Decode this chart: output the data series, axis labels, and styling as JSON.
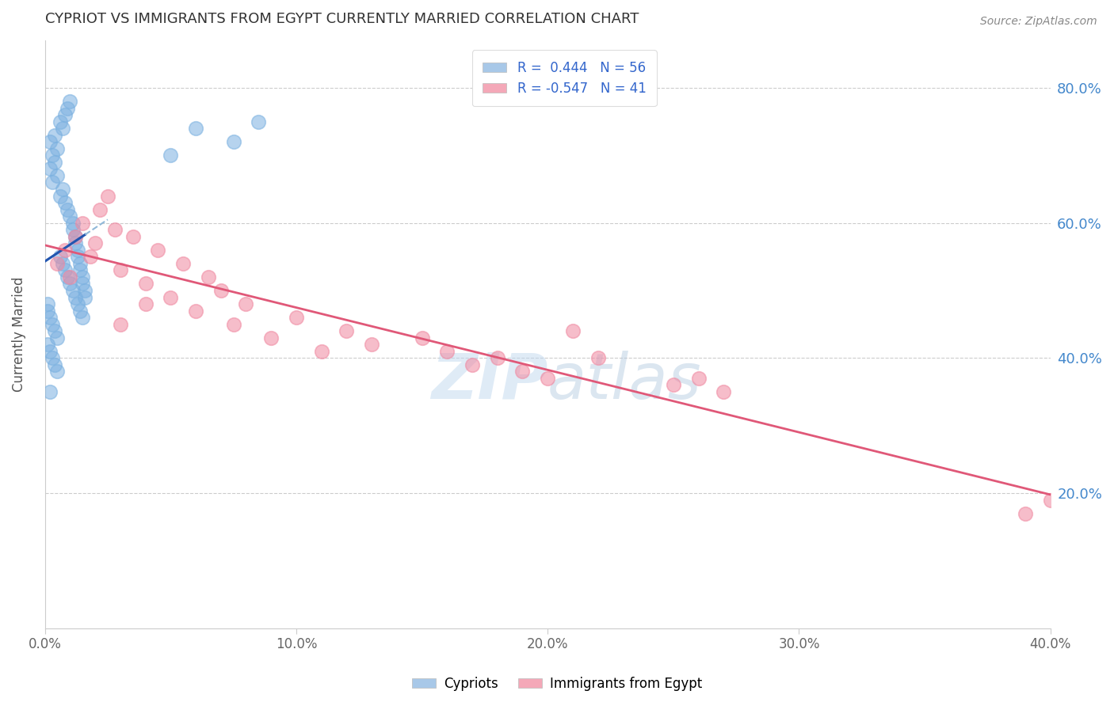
{
  "title": "CYPRIOT VS IMMIGRANTS FROM EGYPT CURRENTLY MARRIED CORRELATION CHART",
  "source": "Source: ZipAtlas.com",
  "ylabel": "Currently Married",
  "watermark": "ZIPatlas",
  "xlim": [
    0.0,
    0.4
  ],
  "ylim": [
    0.0,
    0.87
  ],
  "xtick_labels": [
    "0.0%",
    "10.0%",
    "20.0%",
    "30.0%",
    "40.0%"
  ],
  "xtick_vals": [
    0.0,
    0.1,
    0.2,
    0.3,
    0.4
  ],
  "ytick_labels": [
    "20.0%",
    "40.0%",
    "60.0%",
    "80.0%"
  ],
  "ytick_vals": [
    0.2,
    0.4,
    0.6,
    0.8
  ],
  "cypriot_color": "#7ab0e0",
  "egypt_color": "#f088a0",
  "blue_line_color": "#2255b0",
  "pink_line_color": "#e05878",
  "dashed_line_color": "#90b8d8",
  "cypriot_x": [
    0.002,
    0.002,
    0.003,
    0.003,
    0.004,
    0.004,
    0.005,
    0.005,
    0.006,
    0.006,
    0.007,
    0.007,
    0.008,
    0.008,
    0.009,
    0.009,
    0.01,
    0.01,
    0.011,
    0.011,
    0.012,
    0.012,
    0.013,
    0.013,
    0.014,
    0.014,
    0.015,
    0.015,
    0.016,
    0.016,
    0.001,
    0.001,
    0.002,
    0.003,
    0.004,
    0.005,
    0.006,
    0.007,
    0.008,
    0.009,
    0.01,
    0.011,
    0.012,
    0.013,
    0.014,
    0.015,
    0.001,
    0.002,
    0.003,
    0.004,
    0.005,
    0.05,
    0.06,
    0.075,
    0.085,
    0.002
  ],
  "cypriot_y": [
    0.72,
    0.68,
    0.7,
    0.66,
    0.73,
    0.69,
    0.71,
    0.67,
    0.75,
    0.64,
    0.74,
    0.65,
    0.76,
    0.63,
    0.77,
    0.62,
    0.78,
    0.61,
    0.6,
    0.59,
    0.58,
    0.57,
    0.56,
    0.55,
    0.54,
    0.53,
    0.52,
    0.51,
    0.5,
    0.49,
    0.48,
    0.47,
    0.46,
    0.45,
    0.44,
    0.43,
    0.55,
    0.54,
    0.53,
    0.52,
    0.51,
    0.5,
    0.49,
    0.48,
    0.47,
    0.46,
    0.42,
    0.41,
    0.4,
    0.39,
    0.38,
    0.7,
    0.74,
    0.72,
    0.75,
    0.35
  ],
  "egypt_x": [
    0.005,
    0.008,
    0.01,
    0.012,
    0.015,
    0.018,
    0.02,
    0.022,
    0.025,
    0.028,
    0.03,
    0.035,
    0.04,
    0.045,
    0.05,
    0.055,
    0.06,
    0.065,
    0.07,
    0.075,
    0.08,
    0.09,
    0.1,
    0.11,
    0.12,
    0.13,
    0.15,
    0.16,
    0.17,
    0.19,
    0.21,
    0.22,
    0.25,
    0.26,
    0.27,
    0.39,
    0.4,
    0.03,
    0.04,
    0.2,
    0.18
  ],
  "egypt_y": [
    0.54,
    0.56,
    0.52,
    0.58,
    0.6,
    0.55,
    0.57,
    0.62,
    0.64,
    0.59,
    0.53,
    0.58,
    0.51,
    0.56,
    0.49,
    0.54,
    0.47,
    0.52,
    0.5,
    0.45,
    0.48,
    0.43,
    0.46,
    0.41,
    0.44,
    0.42,
    0.43,
    0.41,
    0.39,
    0.38,
    0.44,
    0.4,
    0.36,
    0.37,
    0.35,
    0.17,
    0.19,
    0.45,
    0.48,
    0.37,
    0.4
  ],
  "legend_label1": "R =  0.444   N = 56",
  "legend_label2": "R = -0.547   N = 41",
  "legend_color1": "#a8c8e8",
  "legend_color2": "#f4a8b8",
  "bottom_label1": "Cypriots",
  "bottom_label2": "Immigrants from Egypt"
}
